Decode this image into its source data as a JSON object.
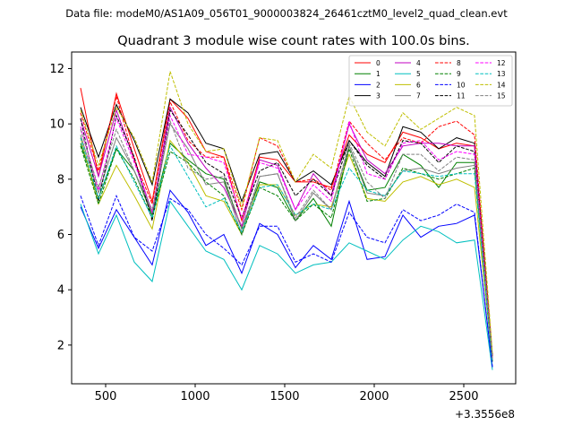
{
  "suptitle": "Data file: modeM0/AS1A09_056T01_9000003824_26461cztM0_level2_quad_clean.evt",
  "chart_data": {
    "type": "line",
    "title": "Quadrant 3 module wise count rates with 100.0s bins.",
    "xlabel": "",
    "ylabel": "",
    "x_offset_label": "+3.3556e8",
    "xlim": [
      310,
      2790
    ],
    "ylim": [
      0.6,
      12.6
    ],
    "xticks": [
      500,
      1000,
      1500,
      2000,
      2500
    ],
    "yticks": [
      2,
      4,
      6,
      8,
      10,
      12
    ],
    "legend_placement": "top-right",
    "x": [
      360,
      460,
      560,
      660,
      760,
      860,
      960,
      1060,
      1160,
      1260,
      1360,
      1460,
      1560,
      1660,
      1760,
      1860,
      1960,
      2060,
      2160,
      2260,
      2360,
      2460,
      2560,
      2660
    ],
    "series": [
      {
        "name": "0",
        "color": "#ff0000",
        "dash": "solid",
        "values": [
          11.3,
          8.1,
          11.1,
          9.1,
          7.2,
          10.9,
          10.2,
          9.0,
          8.8,
          6.5,
          8.8,
          8.7,
          7.9,
          7.9,
          7.7,
          9.6,
          8.9,
          8.6,
          9.7,
          9.5,
          9.1,
          9.3,
          9.2,
          1.6
        ]
      },
      {
        "name": "1",
        "color": "#008000",
        "dash": "solid",
        "values": [
          9.3,
          7.3,
          9.1,
          8.3,
          6.7,
          9.3,
          8.7,
          8.2,
          8.0,
          6.2,
          7.9,
          7.7,
          6.5,
          7.3,
          6.3,
          9.2,
          7.6,
          7.7,
          8.9,
          8.5,
          7.7,
          8.6,
          8.6,
          1.4
        ]
      },
      {
        "name": "2",
        "color": "#0000ff",
        "dash": "solid",
        "values": [
          7.0,
          5.5,
          6.9,
          5.9,
          4.9,
          7.6,
          6.8,
          5.6,
          6.0,
          4.6,
          6.4,
          6.0,
          4.8,
          5.6,
          5.1,
          7.2,
          5.1,
          5.2,
          6.7,
          5.9,
          6.3,
          6.4,
          6.7,
          1.2
        ]
      },
      {
        "name": "3",
        "color": "#000000",
        "dash": "solid",
        "values": [
          10.6,
          8.8,
          10.7,
          9.4,
          7.8,
          10.9,
          10.4,
          9.3,
          9.1,
          7.2,
          8.9,
          9.0,
          7.9,
          8.3,
          7.8,
          9.4,
          8.6,
          8.1,
          9.9,
          9.7,
          9.1,
          9.5,
          9.3,
          1.6
        ]
      },
      {
        "name": "4",
        "color": "#c000c0",
        "dash": "solid",
        "values": [
          10.2,
          8.1,
          10.5,
          8.7,
          6.8,
          10.6,
          9.3,
          8.4,
          7.7,
          6.3,
          8.7,
          8.5,
          6.9,
          8.2,
          7.4,
          10.0,
          8.7,
          8.2,
          9.2,
          9.3,
          9.3,
          9.2,
          9.2,
          1.5
        ]
      },
      {
        "name": "5",
        "color": "#00bfbf",
        "dash": "solid",
        "values": [
          7.1,
          5.3,
          6.7,
          5.0,
          4.3,
          7.2,
          6.3,
          5.4,
          5.1,
          4.0,
          5.6,
          5.3,
          4.6,
          4.9,
          5.0,
          5.7,
          5.4,
          5.1,
          5.8,
          6.3,
          6.1,
          5.7,
          5.8,
          1.1
        ]
      },
      {
        "name": "6",
        "color": "#bfbf00",
        "dash": "solid",
        "values": [
          9.5,
          7.1,
          8.5,
          7.4,
          6.2,
          9.4,
          8.6,
          7.4,
          7.2,
          6.0,
          7.8,
          7.8,
          6.7,
          7.1,
          7.0,
          8.9,
          7.3,
          7.2,
          7.9,
          8.1,
          7.8,
          8.0,
          7.7,
          1.4
        ]
      },
      {
        "name": "7",
        "color": "#808080",
        "dash": "solid",
        "values": [
          9.6,
          7.5,
          9.5,
          8.3,
          6.8,
          10.0,
          9.1,
          7.8,
          7.9,
          6.0,
          8.1,
          8.2,
          6.5,
          7.5,
          6.9,
          9.2,
          7.5,
          7.4,
          8.3,
          8.4,
          8.2,
          8.4,
          8.5,
          1.4
        ]
      },
      {
        "name": "8",
        "color": "#ff0000",
        "dash": "dashed",
        "values": [
          10.4,
          8.3,
          11.0,
          8.7,
          7.1,
          10.8,
          9.4,
          8.8,
          8.8,
          6.9,
          9.5,
          9.2,
          7.9,
          8.0,
          7.6,
          10.1,
          9.3,
          8.7,
          9.5,
          9.3,
          9.9,
          10.1,
          9.6,
          1.6
        ]
      },
      {
        "name": "9",
        "color": "#008000",
        "dash": "dashed",
        "values": [
          9.2,
          7.1,
          9.1,
          8.0,
          6.6,
          9.0,
          8.6,
          7.9,
          7.4,
          6.0,
          7.7,
          7.4,
          6.5,
          7.1,
          6.6,
          9.1,
          7.2,
          7.3,
          8.4,
          8.2,
          8.0,
          8.2,
          8.4,
          1.4
        ]
      },
      {
        "name": "10",
        "color": "#0000ff",
        "dash": "dashed",
        "values": [
          7.4,
          5.6,
          7.4,
          5.9,
          5.4,
          7.3,
          6.9,
          6.0,
          5.5,
          4.9,
          6.3,
          6.3,
          5.0,
          5.3,
          5.0,
          6.8,
          5.9,
          5.7,
          6.9,
          6.5,
          6.7,
          7.1,
          6.8,
          1.2
        ]
      },
      {
        "name": "11",
        "color": "#000000",
        "dash": "dashed",
        "values": [
          10.2,
          7.2,
          10.3,
          8.8,
          6.5,
          10.5,
          9.6,
          8.6,
          8.2,
          6.6,
          8.3,
          8.6,
          7.4,
          8.0,
          7.4,
          9.4,
          8.5,
          8.0,
          9.4,
          9.3,
          8.6,
          9.2,
          9.0,
          1.6
        ]
      },
      {
        "name": "12",
        "color": "#ff00ff",
        "dash": "dashed",
        "values": [
          9.9,
          7.6,
          10.2,
          8.6,
          6.8,
          10.3,
          8.9,
          8.8,
          8.6,
          6.6,
          8.6,
          8.4,
          6.9,
          7.8,
          7.2,
          10.1,
          8.2,
          8.0,
          9.3,
          9.4,
          8.7,
          9.0,
          8.9,
          1.5
        ]
      },
      {
        "name": "13",
        "color": "#00bfbf",
        "dash": "dashed",
        "values": [
          9.5,
          7.3,
          9.2,
          7.9,
          6.6,
          9.2,
          8.1,
          7.0,
          7.3,
          6.1,
          7.7,
          7.8,
          6.7,
          7.1,
          6.9,
          8.4,
          7.6,
          7.4,
          8.3,
          8.2,
          8.1,
          8.2,
          8.2,
          1.4
        ]
      },
      {
        "name": "14",
        "color": "#bfbf00",
        "dash": "dashed",
        "values": [
          10.5,
          8.5,
          10.6,
          9.5,
          7.9,
          11.9,
          10.0,
          9.0,
          9.1,
          7.0,
          9.5,
          9.4,
          7.9,
          8.9,
          8.4,
          11.0,
          9.7,
          9.2,
          10.4,
          9.8,
          10.2,
          10.6,
          10.3,
          1.7
        ]
      },
      {
        "name": "15",
        "color": "#808080",
        "dash": "dashed",
        "values": [
          9.8,
          7.7,
          9.8,
          8.3,
          6.9,
          10.1,
          8.4,
          8.0,
          8.1,
          6.2,
          8.1,
          8.2,
          6.6,
          7.6,
          6.9,
          9.3,
          7.9,
          7.3,
          8.9,
          8.9,
          8.3,
          8.8,
          8.7,
          1.5
        ]
      }
    ]
  }
}
